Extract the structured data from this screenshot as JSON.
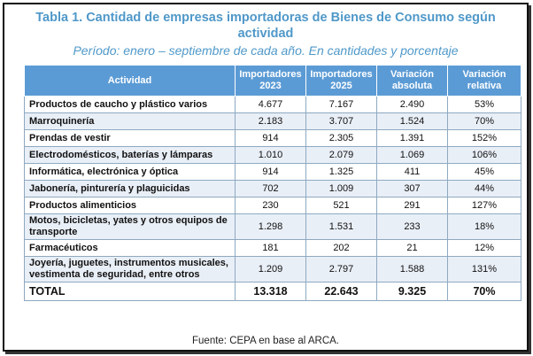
{
  "title_line1": "Tabla 1. Cantidad de empresas importadoras de Bienes de Consumo según",
  "title_line2": "actividad",
  "subtitle": "Período: enero – septiembre de cada año. En cantidades y porcentaje",
  "headers": {
    "activity": "Actividad",
    "imp2023_line1": "Importadores",
    "imp2023_line2": "2023",
    "imp2025_line1": "Importadores",
    "imp2025_line2": "2025",
    "abs_line1": "Variación",
    "abs_line2": "absoluta",
    "rel_line1": "Variación",
    "rel_line2": "relativa"
  },
  "rows": [
    {
      "activity": "Productos de caucho y plástico varios",
      "imp2023": "4.677",
      "imp2025": "7.167",
      "abs": "2.490",
      "rel": "53%"
    },
    {
      "activity": "Marroquinería",
      "imp2023": "2.183",
      "imp2025": "3.707",
      "abs": "1.524",
      "rel": "70%"
    },
    {
      "activity": "Prendas de vestir",
      "imp2023": "914",
      "imp2025": "2.305",
      "abs": "1.391",
      "rel": "152%"
    },
    {
      "activity": "Electrodomésticos, baterías y lámparas",
      "imp2023": "1.010",
      "imp2025": "2.079",
      "abs": "1.069",
      "rel": "106%"
    },
    {
      "activity": "Informática, electrónica y óptica",
      "imp2023": "914",
      "imp2025": "1.325",
      "abs": "411",
      "rel": "45%"
    },
    {
      "activity": "Jabonería, pinturería y plaguicidas",
      "imp2023": "702",
      "imp2025": "1.009",
      "abs": "307",
      "rel": "44%"
    },
    {
      "activity": "Productos alimenticios",
      "imp2023": "230",
      "imp2025": "521",
      "abs": "291",
      "rel": "127%"
    },
    {
      "activity": "Motos, bicicletas, yates y otros equipos de transporte",
      "imp2023": "1.298",
      "imp2025": "1.531",
      "abs": "233",
      "rel": "18%"
    },
    {
      "activity": "Farmacéuticos",
      "imp2023": "181",
      "imp2025": "202",
      "abs": "21",
      "rel": "12%"
    },
    {
      "activity": "Joyería, juguetes, instrumentos musicales, vestimenta de seguridad, entre otros",
      "imp2023": "1.209",
      "imp2025": "2.797",
      "abs": "1.588",
      "rel": "131%"
    }
  ],
  "total": {
    "activity": "TOTAL",
    "imp2023": "13.318",
    "imp2025": "22.643",
    "abs": "9.325",
    "rel": "70%"
  },
  "source": "Fuente: CEPA en base al ARCA.",
  "colors": {
    "accent": "#4f98c9",
    "header_bg": "#5b9bd5",
    "stripe": "#e9eff7"
  }
}
